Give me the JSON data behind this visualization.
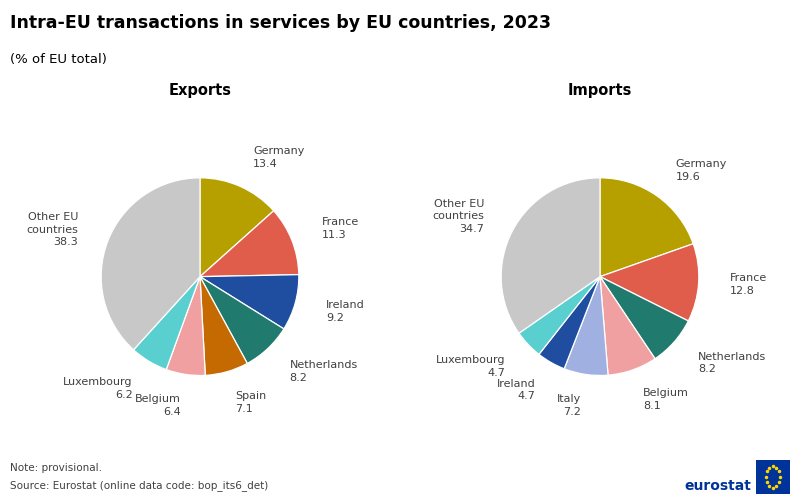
{
  "title": "Intra-EU transactions in services by EU countries, 2023",
  "subtitle": "(% of EU total)",
  "exports": {
    "title": "Exports",
    "labels": [
      "Germany",
      "France",
      "Ireland",
      "Netherlands",
      "Spain",
      "Belgium",
      "Luxembourg",
      "Other EU\ncountries"
    ],
    "values": [
      13.4,
      11.3,
      9.2,
      8.2,
      7.1,
      6.4,
      6.2,
      38.3
    ],
    "colors": [
      "#b5a000",
      "#e05c4b",
      "#1f4ea1",
      "#217a6e",
      "#c46a00",
      "#f0a0a0",
      "#5acfcf",
      "#c8c8c8"
    ],
    "label_values": [
      "13.4",
      "11.3",
      "9.2",
      "8.2",
      "7.1",
      "6.4",
      "6.2",
      "38.3"
    ]
  },
  "imports": {
    "title": "Imports",
    "labels": [
      "Germany",
      "France",
      "Netherlands",
      "Belgium",
      "Italy",
      "Ireland",
      "Luxembourg",
      "Other EU\ncountries"
    ],
    "values": [
      19.6,
      12.8,
      8.2,
      8.1,
      7.2,
      4.7,
      4.7,
      34.7
    ],
    "colors": [
      "#b5a000",
      "#e05c4b",
      "#217a6e",
      "#f0a0a0",
      "#a0b0e0",
      "#1f4ea1",
      "#5acfcf",
      "#c8c8c8"
    ],
    "label_values": [
      "19.6",
      "12.8",
      "8.2",
      "8.1",
      "7.2",
      "4.7",
      "4.7",
      "34.7"
    ]
  },
  "background_color": "#ffffff",
  "label_fontsize": 8.0,
  "title_fontsize": 12.5,
  "subtitle_fontsize": 9.5,
  "pie_title_fontsize": 10.5,
  "note_text": "Note: provisional.",
  "source_text": "Source: Eurostat (online data code: bop_its6_det)",
  "eurostat_text": "eurostat"
}
